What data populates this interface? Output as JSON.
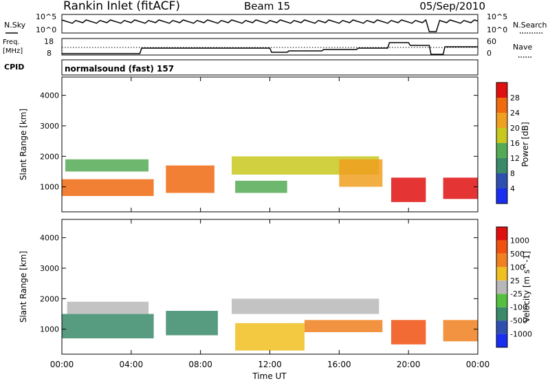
{
  "header": {
    "station": "Rankin Inlet (fitACF)",
    "beam": "Beam 15",
    "date": "05/Sep/2010"
  },
  "strip": {
    "nsky_label": "N.Sky",
    "nsearch_label": "N.Search",
    "ticks_left": [
      "10^5",
      "10^0"
    ],
    "ticks_right": [
      "10^5",
      "10^0"
    ],
    "freq_label_1": "Freq.",
    "freq_label_2": "[MHz]",
    "freq_ticks": [
      "18",
      "8"
    ],
    "nave_label": "Nave",
    "nave_ticks": [
      "60",
      "0"
    ],
    "cpid_label": "CPID",
    "cpid_value": "normalsound (fast) 157"
  },
  "chart_data": [
    {
      "type": "heatmap",
      "name": "power-panel",
      "ylabel": "Slant Range [km]",
      "y_ticks": [
        1000,
        2000,
        3000,
        4000
      ],
      "ylim": [
        180,
        4600
      ],
      "xlim_hours": [
        0,
        24
      ],
      "colorbar_label": "Power [dB]",
      "colorbar_ticks": [
        "4",
        "8",
        "12",
        "16",
        "20",
        "24",
        "28"
      ],
      "colorbar_colors": [
        "#1a2ef0",
        "#2f4fb0",
        "#3a8a6a",
        "#55aa55",
        "#c8c820",
        "#f0a020",
        "#f06a10",
        "#e01010"
      ],
      "bands": [
        {
          "t0": 0.0,
          "t1": 5.3,
          "r0": 700,
          "r1": 1250,
          "color": "#f06a10"
        },
        {
          "t0": 0.2,
          "t1": 5.0,
          "r0": 1500,
          "r1": 1900,
          "color": "#55aa55"
        },
        {
          "t0": 6.0,
          "t1": 8.8,
          "r0": 800,
          "r1": 1700,
          "color": "#f06a10"
        },
        {
          "t0": 9.8,
          "t1": 18.3,
          "r0": 1400,
          "r1": 2000,
          "color": "#c8c820"
        },
        {
          "t0": 10.0,
          "t1": 13.0,
          "r0": 800,
          "r1": 1200,
          "color": "#55aa55"
        },
        {
          "t0": 16.0,
          "t1": 18.5,
          "r0": 1000,
          "r1": 1900,
          "color": "#f0a020"
        },
        {
          "t0": 19.0,
          "t1": 21.0,
          "r0": 500,
          "r1": 1300,
          "color": "#e01010"
        },
        {
          "t0": 22.0,
          "t1": 24.0,
          "r0": 600,
          "r1": 1300,
          "color": "#e01010"
        }
      ]
    },
    {
      "type": "heatmap",
      "name": "velocity-panel",
      "ylabel": "Slant Range [km]",
      "y_ticks": [
        1000,
        2000,
        3000,
        4000
      ],
      "ylim": [
        180,
        4600
      ],
      "x_ticks": [
        "00:00",
        "04:00",
        "08:00",
        "12:00",
        "16:00",
        "20:00",
        "00:00"
      ],
      "xlabel": "Time UT",
      "colorbar_label": "Velocity [m s^-1]",
      "colorbar_ticks": [
        "1000",
        "500",
        "100",
        "25",
        "-25",
        "-100",
        "-500",
        "-1000"
      ],
      "colorbar_colors": [
        "#1a2ef0",
        "#2f4fb0",
        "#3a8a6a",
        "#55c040",
        "#b8b8b8",
        "#f0c020",
        "#f08020",
        "#f05010",
        "#e01010"
      ],
      "bands": [
        {
          "t0": 0.0,
          "t1": 5.3,
          "r0": 700,
          "r1": 1500,
          "color": "#3a8a6a"
        },
        {
          "t0": 0.3,
          "t1": 5.0,
          "r0": 1500,
          "r1": 1900,
          "color": "#b8b8b8"
        },
        {
          "t0": 6.0,
          "t1": 9.0,
          "r0": 800,
          "r1": 1600,
          "color": "#3a8a6a"
        },
        {
          "t0": 9.8,
          "t1": 18.3,
          "r0": 1500,
          "r1": 2000,
          "color": "#b8b8b8"
        },
        {
          "t0": 10.0,
          "t1": 14.0,
          "r0": 300,
          "r1": 1200,
          "color": "#f0c020"
        },
        {
          "t0": 14.0,
          "t1": 18.5,
          "r0": 900,
          "r1": 1300,
          "color": "#f08020"
        },
        {
          "t0": 19.0,
          "t1": 21.0,
          "r0": 500,
          "r1": 1300,
          "color": "#f05010"
        },
        {
          "t0": 22.0,
          "t1": 24.0,
          "r0": 600,
          "r1": 1300,
          "color": "#f08020"
        }
      ]
    }
  ]
}
